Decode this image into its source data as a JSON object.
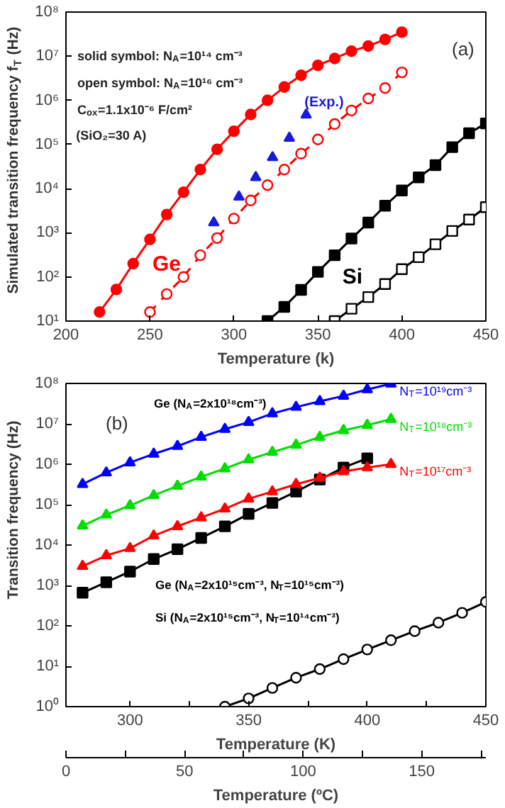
{
  "chart_data": [
    {
      "type": "line",
      "title": "(a)",
      "xlabel": "Temperature (k)",
      "ylabel": "Simulated transition frequency f$_{T}$ (Hz)",
      "log": "y",
      "grid": false,
      "xlim": [
        200,
        450
      ],
      "xticks": [
        200,
        250,
        300,
        350,
        400,
        450
      ],
      "ylim": [
        10,
        100000000
      ],
      "yticks": [
        {
          "value": 10,
          "label": "10¹"
        },
        {
          "value": 100,
          "label": "10²"
        },
        {
          "value": 1000,
          "label": "10³"
        },
        {
          "value": 10000,
          "label": "10⁴"
        },
        {
          "value": 100000,
          "label": "10⁵"
        },
        {
          "value": 1000000,
          "label": "10⁶"
        },
        {
          "value": 10000000,
          "label": "10⁷"
        },
        {
          "value": 100000000,
          "label": "10⁸"
        }
      ],
      "annotations": [
        "solid symbol: N$_{A}$=10¹⁴ cm⁻³",
        "open symbol: N$_{A}$=10¹⁶ cm⁻³",
        "C$_{ox}$=1.1x10⁻⁶ F/cm²",
        "(SiO₂=30 A)",
        "Ge",
        "Si",
        "(Exp.)"
      ],
      "series": [
        {
          "color": "#ff0000",
          "marker": "circle",
          "line_style": "solid",
          "x": [
            220,
            230,
            240,
            250,
            260,
            270,
            280,
            290,
            300,
            310,
            320,
            330,
            340,
            350,
            360,
            370,
            380,
            390,
            400
          ],
          "values": [
            16,
            52,
            200,
            710,
            2600,
            8300,
            27000,
            78000,
            200000,
            480000,
            1000000,
            2000000,
            3700000,
            6200000,
            8900000,
            13000000,
            17000000,
            24000000,
            35000000
          ]
        },
        {
          "color": "#ff0000",
          "marker": "circle open",
          "line_style": "dashed",
          "x": [
            250,
            260,
            270,
            280,
            290,
            300,
            310,
            320,
            330,
            340,
            350,
            360,
            370,
            380,
            390,
            400
          ],
          "values": [
            16,
            41,
            100,
            310,
            760,
            2100,
            5400,
            12000,
            27000,
            62000,
            130000,
            290000,
            590000,
            1100000,
            1900000,
            4300000
          ]
        },
        {
          "type": "scatter",
          "color": "#1a1adb",
          "marker": "triangle",
          "x": [
            288,
            303,
            313,
            323,
            333,
            343
          ],
          "values": [
            1700,
            6500,
            18000,
            51000,
            140000,
            470000
          ]
        },
        {
          "color": "#000000",
          "marker": "square",
          "line_style": "solid",
          "x": [
            320,
            330,
            340,
            350,
            360,
            370,
            380,
            390,
            400,
            410,
            420,
            430,
            440,
            450
          ],
          "values": [
            10,
            21,
            51,
            130,
            310,
            740,
            1700,
            4100,
            9100,
            18000,
            34000,
            87000,
            180000,
            300000
          ]
        },
        {
          "color": "#000000",
          "marker": "square open",
          "line_style": "solid",
          "x": [
            360,
            370,
            380,
            390,
            400,
            410,
            420,
            430,
            440,
            450
          ],
          "values": [
            10,
            19,
            35,
            69,
            150,
            280,
            550,
            1100,
            2000,
            3800
          ]
        }
      ]
    },
    {
      "type": "line",
      "title": "(b)",
      "xlabel": "Temperature (K)",
      "x2label": "Temperature (ºC)",
      "ylabel": "Transition frequency (Hz)",
      "log": "y",
      "grid": false,
      "xlim": [
        273,
        450
      ],
      "xticks": [
        300,
        {
          "value": 325,
          "label": null
        },
        350,
        {
          "value": 375,
          "label": null
        },
        400,
        {
          "value": 425,
          "label": null
        },
        450
      ],
      "x2lim": [
        0,
        177
      ],
      "x2ticks": [
        0,
        50,
        100,
        150
      ],
      "ylim": [
        1,
        100000000
      ],
      "yticks": [
        {
          "value": 1,
          "label": "10⁰"
        },
        {
          "value": 10,
          "label": "10¹"
        },
        {
          "value": 100,
          "label": "10²"
        },
        {
          "value": 1000,
          "label": "10³"
        },
        {
          "value": 10000,
          "label": "10⁴"
        },
        {
          "value": 100000,
          "label": "10⁵"
        },
        {
          "value": 1000000,
          "label": "10⁶"
        },
        {
          "value": 10000000,
          "label": "10⁷"
        },
        {
          "value": 100000000,
          "label": "10⁸"
        }
      ],
      "annotations": [
        "Ge (N$_{A}$=2x10¹⁸cm⁻³)",
        "Ge (N$_{A}$=2x10¹⁵cm⁻³, N$_{T}$=10¹⁵cm⁻³)",
        "Si (N$_{A}$=2x10¹⁵cm⁻³, N$_{T}$=10¹⁴cm⁻³)"
      ],
      "series": [
        {
          "color": "#000000",
          "marker": "square",
          "line_style": "solid",
          "x": [
            280,
            290,
            300,
            310,
            320,
            330,
            340,
            350,
            360,
            370,
            380,
            390,
            400
          ],
          "values": [
            660,
            1200,
            2200,
            4500,
            7900,
            15000,
            29000,
            59000,
            110000,
            210000,
            420000,
            830000,
            1400000
          ]
        },
        {
          "name": "N$_{T}$=10¹⁹cm⁻³",
          "color": "#0000ff",
          "marker": "triangle",
          "line_style": "solid",
          "x": [
            280,
            290,
            300,
            310,
            320,
            330,
            340,
            350,
            360,
            370,
            380,
            390,
            400,
            410
          ],
          "values": [
            320000,
            620000,
            1100000,
            1800000,
            2800000,
            4700000,
            7400000,
            11000000,
            18000000,
            26000000,
            36000000,
            49000000,
            71000000,
            98000000
          ]
        },
        {
          "name": "N$_{T}$=10¹⁸cm⁻³",
          "color": "#00dd00",
          "marker": "triangle",
          "line_style": "solid",
          "x": [
            280,
            290,
            300,
            310,
            320,
            330,
            340,
            350,
            360,
            370,
            380,
            390,
            400,
            410
          ],
          "values": [
            30000,
            56000,
            95000,
            170000,
            290000,
            490000,
            780000,
            1300000,
            2000000,
            3000000,
            4700000,
            6900000,
            9300000,
            13000000
          ]
        },
        {
          "name": "N$_{T}$=10¹⁷cm⁻³",
          "color": "#ff0000",
          "marker": "triangle",
          "line_style": "solid",
          "x": [
            280,
            290,
            300,
            310,
            320,
            330,
            340,
            350,
            360,
            370,
            380,
            390,
            400,
            410
          ],
          "values": [
            3000,
            5500,
            8300,
            17000,
            29000,
            48000,
            79000,
            140000,
            210000,
            320000,
            460000,
            660000,
            830000,
            1000000
          ]
        },
        {
          "color": "#000000",
          "marker": "circle open",
          "line_style": "solid",
          "x": [
            340,
            350,
            360,
            370,
            380,
            390,
            400,
            410,
            420,
            430,
            440,
            450
          ],
          "values": [
            1.0,
            1.6,
            2.9,
            5.2,
            8.5,
            15,
            26,
            44,
            74,
            120,
            210,
            390
          ]
        }
      ]
    }
  ]
}
